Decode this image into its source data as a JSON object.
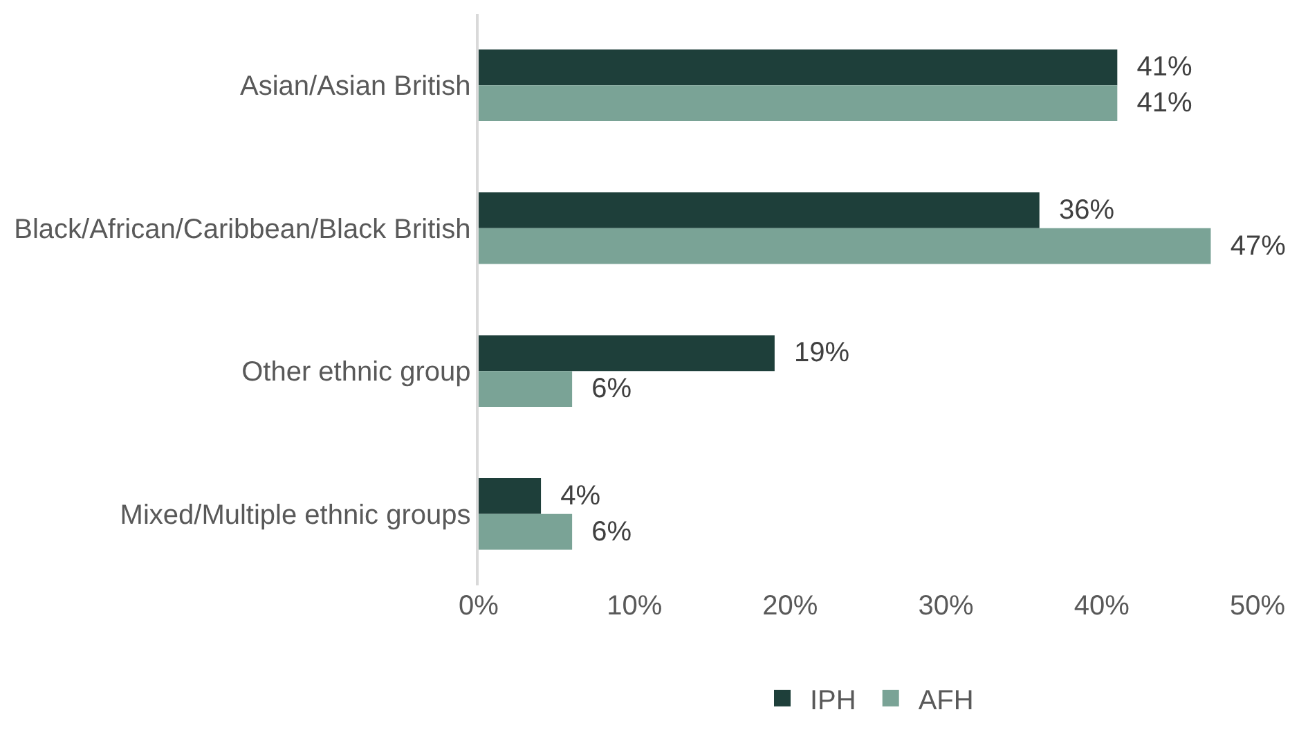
{
  "chart_data": {
    "type": "bar",
    "orientation": "horizontal",
    "categories": [
      "Asian/Asian British",
      "Black/African/Caribbean/Black British",
      "Other ethnic group",
      "Mixed/Multiple ethnic groups"
    ],
    "series": [
      {
        "name": "IPH",
        "color": "#1e3f3a",
        "values": [
          41,
          36,
          19,
          4
        ],
        "value_labels": [
          "41%",
          "36%",
          "19%",
          "4%"
        ]
      },
      {
        "name": "AFH",
        "color": "#7aa396",
        "values": [
          41,
          47,
          6,
          6
        ],
        "value_labels": [
          "41%",
          "47%",
          "6%",
          "6%"
        ]
      }
    ],
    "xlim": [
      0,
      50
    ],
    "xticks": [
      {
        "value": 0,
        "label": "0%"
      },
      {
        "value": 10,
        "label": "10%"
      },
      {
        "value": 20,
        "label": "20%"
      },
      {
        "value": 30,
        "label": "30%"
      },
      {
        "value": 40,
        "label": "40%"
      },
      {
        "value": 50,
        "label": "50%"
      }
    ],
    "legend": "bottom"
  }
}
